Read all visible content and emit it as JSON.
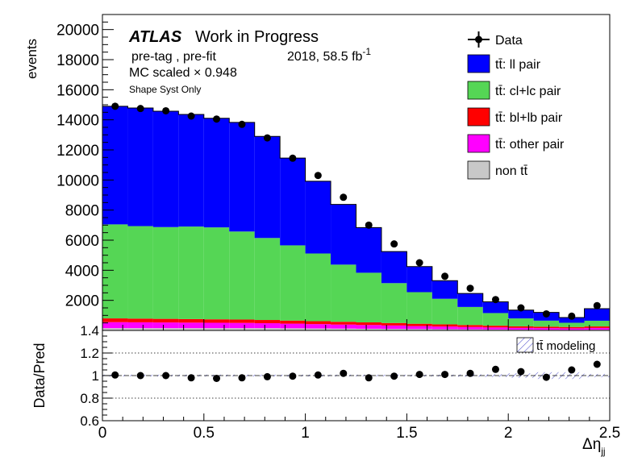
{
  "chart_data": {
    "type": "bar",
    "stacked": true,
    "x_bin_edges": [
      0.0,
      0.125,
      0.25,
      0.375,
      0.5,
      0.625,
      0.75,
      0.875,
      1.0,
      1.125,
      1.25,
      1.375,
      1.5,
      1.625,
      1.75,
      1.875,
      2.0,
      2.125,
      2.25,
      2.375,
      2.5
    ],
    "x_ticks": [
      "0",
      "0.5",
      "1",
      "1.5",
      "2",
      "2.5"
    ],
    "xlabel_main": "Δη",
    "xlabel_sub": "jj",
    "xlim": [
      0,
      2.5
    ],
    "upper_panel": {
      "ylabel": "events",
      "ylim": [
        0,
        21000
      ],
      "y_ticks": [
        "2000",
        "4000",
        "6000",
        "8000",
        "10000",
        "12000",
        "14000",
        "16000",
        "18000",
        "20000"
      ],
      "series": [
        {
          "key": "nontt",
          "name": "non tt̄",
          "color": "#c8c8c8",
          "values": [
            150,
            150,
            150,
            150,
            150,
            150,
            150,
            140,
            130,
            120,
            110,
            100,
            90,
            80,
            70,
            60,
            50,
            45,
            40,
            45
          ]
        },
        {
          "key": "other",
          "name": "tt̄: other pair",
          "color": "#ff00ff",
          "values": [
            400,
            390,
            380,
            370,
            360,
            350,
            330,
            310,
            290,
            270,
            250,
            230,
            200,
            180,
            160,
            140,
            120,
            110,
            100,
            120
          ]
        },
        {
          "key": "bl",
          "name": "tt̄: bl+lb pair",
          "color": "#ff0000",
          "values": [
            250,
            245,
            240,
            235,
            230,
            225,
            215,
            205,
            195,
            185,
            175,
            165,
            155,
            145,
            130,
            115,
            100,
            95,
            90,
            100
          ]
        },
        {
          "key": "cl",
          "name": "tt̄: cl+lc pair",
          "color": "#55d655",
          "values": [
            6250,
            6150,
            6100,
            6150,
            6110,
            5850,
            5450,
            5000,
            4500,
            3800,
            3300,
            2650,
            2100,
            1700,
            1200,
            840,
            530,
            400,
            280,
            380
          ]
        },
        {
          "key": "ll",
          "name": "tt̄: ll pair",
          "color": "#0000ff",
          "values": [
            7850,
            7850,
            7700,
            7450,
            7250,
            7250,
            6750,
            5800,
            4800,
            4000,
            3000,
            2100,
            1700,
            1200,
            900,
            750,
            550,
            550,
            350,
            800
          ]
        }
      ],
      "data": {
        "name": "Data",
        "values": [
          14900,
          14750,
          14600,
          14250,
          14050,
          13700,
          12800,
          11450,
          10300,
          8850,
          7000,
          5750,
          4500,
          3600,
          2800,
          2050,
          1500,
          1100,
          950,
          1650
        ]
      }
    },
    "lower_panel": {
      "ylabel": "Data/Pred",
      "ylim": [
        0.6,
        1.4
      ],
      "y_ticks": [
        "0.6",
        "0.8",
        "1",
        "1.2",
        "1.4"
      ],
      "ratio": [
        1.005,
        1.0,
        1.0,
        0.98,
        0.975,
        0.98,
        0.99,
        0.995,
        1.005,
        1.02,
        0.98,
        0.995,
        1.01,
        1.01,
        1.02,
        1.055,
        1.035,
        0.985,
        1.05,
        1.1
      ],
      "band_label": "tt̄ modeling"
    },
    "legend_placement": "top-right"
  },
  "labels": {
    "atlas": "ATLAS",
    "work": "Work in Progress",
    "selection": "pre-tag ,  pre-fit",
    "lumi": "2018, 58.5 fb",
    "lumi_sup": "-1",
    "scaled": "MC scaled × 0.948",
    "syst": "Shape Syst Only"
  },
  "colors": {
    "data": "#000000",
    "band": "#5050cc",
    "frame": "#000000"
  }
}
